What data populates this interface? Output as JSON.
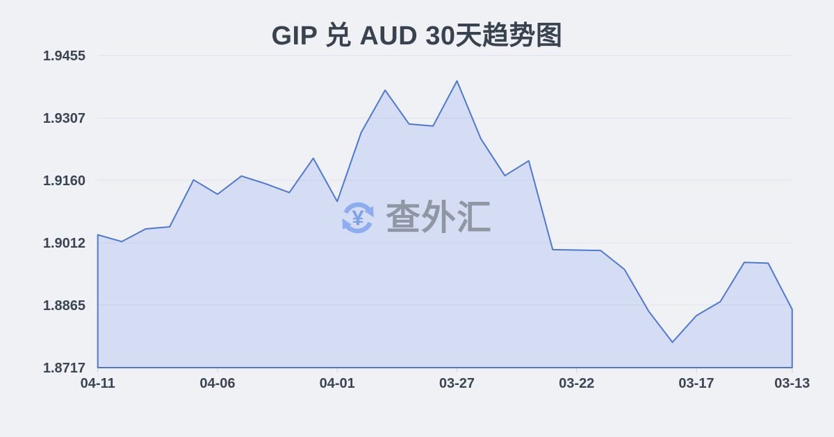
{
  "title": "GIP 兑 AUD 30天趋势图",
  "watermark": {
    "icon": "currency-exchange-icon",
    "symbol": "¥",
    "text": "查外汇"
  },
  "colors": {
    "background": "#eff1f5",
    "line": "#4c78d2",
    "fill": "#7898eb",
    "fill_opacity": 0.22,
    "grid": "#dfe3ea",
    "tick": "#c9ced8",
    "axis_label": "#3b4454",
    "title": "#39424f",
    "watermark_icon": "#8cadf0",
    "watermark_symbol": "#7ca0ed",
    "watermark_text": "#8f97a3"
  },
  "chart_data": {
    "type": "area",
    "title": "GIP 兑 AUD 30天趋势图",
    "xlabel": "",
    "ylabel": "",
    "legend": "none",
    "grid": "horizontal",
    "ylim": [
      1.8717,
      1.9455
    ],
    "y_tick_labels": [
      "1.9455",
      "1.9307",
      "1.9160",
      "1.9012",
      "1.8865",
      "1.8717"
    ],
    "x_ticks": [
      {
        "index": 0,
        "label": "04-11"
      },
      {
        "index": 5,
        "label": "04-06"
      },
      {
        "index": 10,
        "label": "04-01"
      },
      {
        "index": 15,
        "label": "03-27"
      },
      {
        "index": 20,
        "label": "03-22"
      },
      {
        "index": 25,
        "label": "03-17"
      },
      {
        "index": 29,
        "label": "03-13"
      }
    ],
    "x": [
      "04-11",
      "04-10",
      "04-09",
      "04-08",
      "04-07",
      "04-06",
      "04-05",
      "04-04",
      "04-03",
      "04-02",
      "04-01",
      "03-31",
      "03-30",
      "03-29",
      "03-28",
      "03-27",
      "03-26",
      "03-25",
      "03-24",
      "03-23",
      "03-22",
      "03-21",
      "03-20",
      "03-19",
      "03-18",
      "03-17",
      "03-16",
      "03-15",
      "03-14",
      "03-13"
    ],
    "values": [
      1.9031,
      1.9015,
      1.9045,
      1.905,
      1.9161,
      1.9127,
      1.917,
      1.9152,
      1.9131,
      1.9212,
      1.911,
      1.9273,
      1.9373,
      1.9293,
      1.9288,
      1.9395,
      1.9258,
      1.9171,
      1.9206,
      1.8996,
      1.8995,
      1.8994,
      1.8949,
      1.8851,
      1.8777,
      1.884,
      1.8873,
      1.8966,
      1.8964,
      1.8855
    ]
  }
}
